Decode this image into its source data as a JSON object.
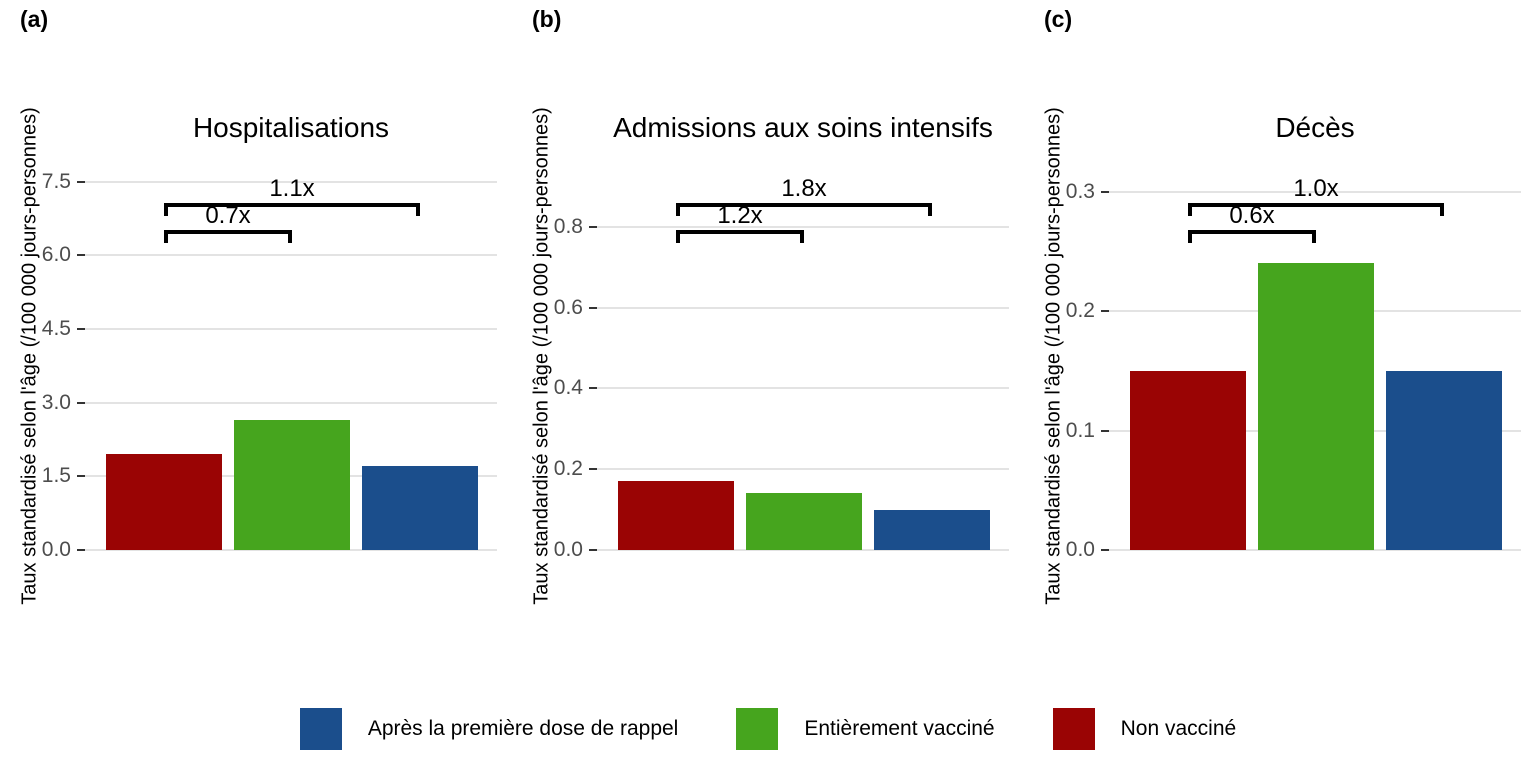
{
  "palette": {
    "red": "#9A0404",
    "green": "#46A51E",
    "blue": "#1B4E8C"
  },
  "style_colors": {
    "gridline": "#E3E3E3",
    "tick_label": "#4D4D4D",
    "bracket": "#000000"
  },
  "y_axis_label": "Taux standardisé selon l'âge (/100 000 jours-personnes)",
  "legend": {
    "items": [
      {
        "label": "Après la première dose de rappel",
        "color_key": "blue"
      },
      {
        "label": "Entièrement vacciné",
        "color_key": "green"
      },
      {
        "label": "Non vacciné",
        "color_key": "red"
      }
    ]
  },
  "chart_data": [
    {
      "type": "bar",
      "panel_tag": "(a)",
      "title": "Hospitalisations",
      "categories": [
        "Non vacciné",
        "Entièrement vacciné",
        "Après la première dose de rappel"
      ],
      "values": [
        1.95,
        2.65,
        1.72
      ],
      "bar_color_keys": [
        "red",
        "green",
        "blue"
      ],
      "ylabel": "Taux standardisé selon l'âge (/100 000 jours-personnes)",
      "ytick_labels": [
        "0.0",
        "1.5",
        "3.0",
        "4.5",
        "6.0",
        "7.5"
      ],
      "ytick_values": [
        0,
        1.5,
        3.0,
        4.5,
        6.0,
        7.5
      ],
      "ylim": [
        0,
        7.9
      ],
      "grid": true,
      "ratio_brackets": [
        {
          "label": "0.7x",
          "from": 0,
          "to": 1,
          "level": "lower"
        },
        {
          "label": "1.1x",
          "from": 0,
          "to": 2,
          "level": "upper"
        }
      ]
    },
    {
      "type": "bar",
      "panel_tag": "(b)",
      "title": "Admissions aux soins intensifs",
      "categories": [
        "Non vacciné",
        "Entièrement vacciné",
        "Après la première dose de rappel"
      ],
      "values": [
        0.17,
        0.14,
        0.1
      ],
      "bar_color_keys": [
        "red",
        "green",
        "blue"
      ],
      "ylabel": "Taux standardisé selon l'âge (/100 000 jours-personnes)",
      "ytick_labels": [
        "0.0",
        "0.2",
        "0.4",
        "0.6",
        "0.8"
      ],
      "ytick_values": [
        0,
        0.2,
        0.4,
        0.6,
        0.8
      ],
      "ylim": [
        0,
        0.96
      ],
      "grid": true,
      "ratio_brackets": [
        {
          "label": "1.2x",
          "from": 0,
          "to": 1,
          "level": "lower"
        },
        {
          "label": "1.8x",
          "from": 0,
          "to": 2,
          "level": "upper"
        }
      ]
    },
    {
      "type": "bar",
      "panel_tag": "(c)",
      "title": "Décès",
      "categories": [
        "Non vacciné",
        "Entièrement vacciné",
        "Après la première dose de rappel"
      ],
      "values": [
        0.15,
        0.24,
        0.15
      ],
      "bar_color_keys": [
        "red",
        "green",
        "blue"
      ],
      "ylabel": "Taux standardisé selon l'âge (/100 000 jours-personnes)",
      "ytick_labels": [
        "0.0",
        "0.1",
        "0.2",
        "0.3"
      ],
      "ytick_values": [
        0,
        0.1,
        0.2,
        0.3
      ],
      "ylim": [
        0,
        0.325
      ],
      "grid": true,
      "ratio_brackets": [
        {
          "label": "0.6x",
          "from": 0,
          "to": 1,
          "level": "lower"
        },
        {
          "label": "1.0x",
          "from": 0,
          "to": 2,
          "level": "upper"
        }
      ]
    }
  ]
}
